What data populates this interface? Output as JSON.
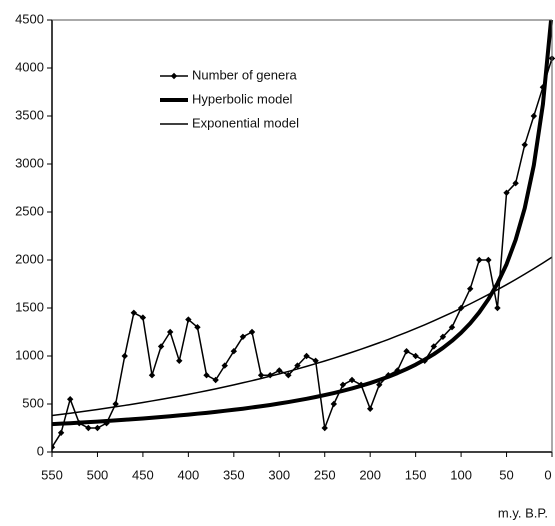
{
  "chart_data": {
    "type": "line",
    "xlabel": "m.y. B.P.",
    "x": [
      550,
      540,
      530,
      520,
      510,
      500,
      490,
      480,
      470,
      460,
      450,
      440,
      430,
      420,
      410,
      400,
      390,
      380,
      370,
      360,
      350,
      340,
      330,
      320,
      310,
      300,
      290,
      280,
      270,
      260,
      250,
      240,
      230,
      220,
      210,
      200,
      190,
      180,
      170,
      160,
      150,
      140,
      130,
      120,
      110,
      100,
      90,
      80,
      70,
      60,
      50,
      40,
      30,
      20,
      10,
      0
    ],
    "series": [
      {
        "name": "Number of genera",
        "color": "#000000",
        "marker": "diamond",
        "width": 1.5,
        "values": [
          50,
          200,
          550,
          300,
          250,
          250,
          300,
          500,
          1000,
          1450,
          1400,
          800,
          1100,
          1250,
          950,
          1380,
          1300,
          800,
          750,
          900,
          1050,
          1200,
          1250,
          800,
          800,
          850,
          800,
          900,
          1000,
          950,
          250,
          500,
          700,
          750,
          700,
          450,
          700,
          800,
          850,
          1050,
          1000,
          950,
          1100,
          1200,
          1300,
          1500,
          1700,
          2000,
          2000,
          1500,
          2700,
          2800,
          3200,
          3500,
          3800,
          4100
        ]
      },
      {
        "name": "Hyperbolic model",
        "color": "#000000",
        "width": 4,
        "values": [
          290,
          295,
          300,
          306,
          311,
          317,
          323,
          329,
          336,
          342,
          349,
          357,
          364,
          372,
          381,
          389,
          399,
          408,
          418,
          429,
          440,
          451,
          464,
          477,
          490,
          505,
          520,
          537,
          554,
          573,
          593,
          614,
          637,
          662,
          689,
          718,
          750,
          784,
          822,
          864,
          910,
          962,
          1019,
          1084,
          1158,
          1242,
          1340,
          1455,
          1591,
          1755,
          1956,
          2210,
          2540,
          2986,
          3621,
          4600
        ]
      },
      {
        "name": "Exponential model",
        "color": "#000000",
        "width": 1.5,
        "values": [
          380,
          392,
          404,
          417,
          430,
          443,
          457,
          471,
          485,
          500,
          516,
          532,
          548,
          565,
          582,
          600,
          619,
          638,
          658,
          678,
          699,
          721,
          743,
          766,
          790,
          814,
          839,
          865,
          892,
          920,
          948,
          977,
          1008,
          1039,
          1071,
          1104,
          1138,
          1173,
          1210,
          1247,
          1286,
          1325,
          1366,
          1409,
          1452,
          1497,
          1543,
          1591,
          1640,
          1691,
          1743,
          1797,
          1853,
          1910,
          1969,
          2030
        ]
      }
    ],
    "xlim": [
      550,
      0
    ],
    "xticks": [
      550,
      500,
      450,
      400,
      350,
      300,
      250,
      200,
      150,
      100,
      50,
      0
    ],
    "ylim": [
      0,
      4500
    ],
    "yticks": [
      0,
      500,
      1000,
      1500,
      2000,
      2500,
      3000,
      3500,
      4000,
      4500
    ],
    "legend": "upper left",
    "grid": false
  }
}
